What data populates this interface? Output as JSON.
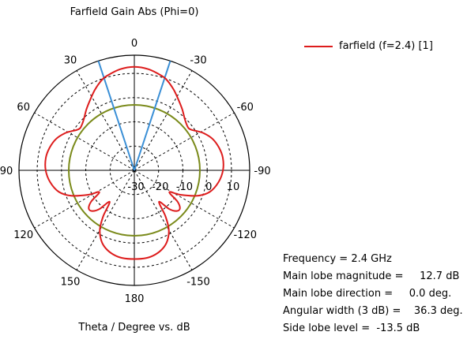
{
  "title": "Farfield Gain Abs (Phi=0)",
  "xlabel": "Theta / Degree vs. dB",
  "legend": "farfield (f=2.4) [1]",
  "info": {
    "frequency": "Frequency = 2.4 GHz",
    "main_lobe_magnitude": "Main lobe magnitude =     12.7 dB",
    "main_lobe_direction": "Main lobe direction =     0.0 deg.",
    "angular_width": "Angular width (3 dB) =    36.3 deg.",
    "side_lobe_level": "Side lobe level =  -13.5 dB"
  },
  "chart_data": {
    "type": "polar-line",
    "title": "Farfield Gain Abs (Phi=0)",
    "xlabel": "Theta / Degree vs. dB",
    "r_range": [
      -30,
      17.5
    ],
    "angle_labels": [
      "0",
      "-30",
      "-60",
      "-90",
      "-120",
      "-150",
      "180",
      "150",
      "120",
      "90",
      "60",
      "30"
    ],
    "radial_labels": [
      "-30",
      "-20",
      "-10",
      "0",
      "10"
    ],
    "series": [
      {
        "name": "farfield (f=2.4) [1]",
        "color": "#dd1c1c",
        "theta": [
          0,
          8,
          16,
          20,
          26,
          32,
          38,
          44,
          48,
          52,
          55,
          58,
          62,
          68,
          75,
          82,
          90,
          98,
          106,
          112,
          118,
          122,
          126,
          130,
          134,
          138,
          142,
          146,
          150,
          155,
          160,
          166,
          172,
          180,
          188,
          194,
          200,
          205,
          210,
          214,
          218,
          222,
          226,
          230,
          234,
          238,
          242,
          248,
          254,
          262,
          270,
          278,
          285,
          292,
          298,
          302,
          305,
          308,
          312,
          316,
          322,
          328,
          334,
          340,
          344,
          352,
          360
        ],
        "gain_db": [
          12.7,
          12.1,
          10.6,
          9.5,
          7.0,
          4.3,
          2.0,
          -0.2,
          -1.2,
          -1.7,
          -1.0,
          0.5,
          2.5,
          4.7,
          6.1,
          6.8,
          6.5,
          5.0,
          2.3,
          -2.0,
          -8.5,
          -13.0,
          -8.0,
          -5.5,
          -5.8,
          -8.5,
          -13.5,
          -7.0,
          -1.6,
          2.1,
          4.3,
          5.8,
          6.5,
          6.6,
          6.5,
          5.8,
          4.3,
          2.1,
          -1.6,
          -7.0,
          -13.5,
          -8.5,
          -5.8,
          -5.5,
          -8.0,
          -13.0,
          -8.5,
          -2.0,
          2.3,
          5.0,
          6.5,
          6.8,
          6.1,
          4.7,
          2.5,
          0.5,
          -1.0,
          -1.7,
          -1.2,
          -0.2,
          2.0,
          4.3,
          7.0,
          9.5,
          10.6,
          12.1,
          12.7
        ]
      }
    ],
    "reference_circle_db": -3.0,
    "main_lobe_db": 12.7,
    "main_lobe_direction_deg": 0.0,
    "beamwidth_3db_deg": 36.3,
    "side_lobe_level_db": -13.5,
    "frequency_ghz": 2.4,
    "colors": {
      "pattern": "#dd1c1c",
      "beam_lines": "#3a8fd6",
      "reference_circle": "#7a8a1a"
    }
  }
}
